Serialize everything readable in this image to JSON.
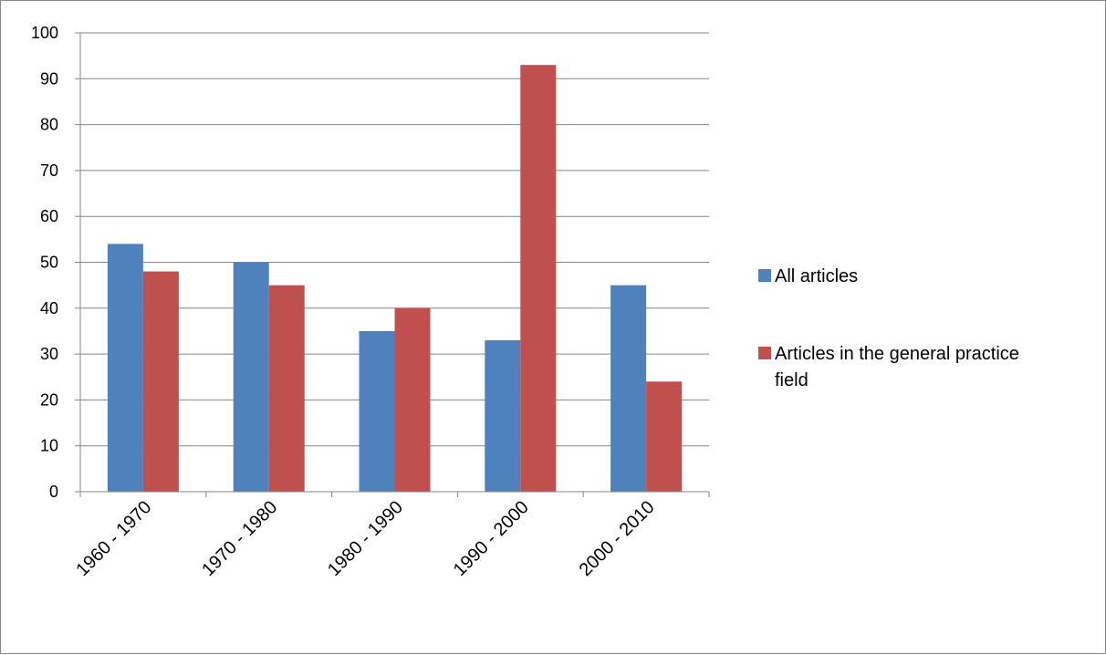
{
  "chart_data": {
    "type": "bar",
    "categories": [
      "1960  -  1970",
      "1970  -  1980",
      "1980  -  1990",
      "1990 - 2000",
      "2000 - 2010"
    ],
    "series": [
      {
        "name": "All articles",
        "values": [
          54,
          50,
          35,
          33,
          45
        ],
        "color": "#4F81BD"
      },
      {
        "name": "Articles in the general practice field",
        "values": [
          48,
          45,
          40,
          93,
          24
        ],
        "color": "#C0504D"
      }
    ],
    "legend_lines": [
      [
        "All articles"
      ],
      [
        "Articles in the general practice",
        "field"
      ]
    ],
    "ylim": [
      0,
      100
    ],
    "yticks": [
      0,
      10,
      20,
      30,
      40,
      50,
      60,
      70,
      80,
      90,
      100
    ],
    "grid": true,
    "legend_position": "right",
    "title": "",
    "xlabel": "",
    "ylabel": ""
  }
}
